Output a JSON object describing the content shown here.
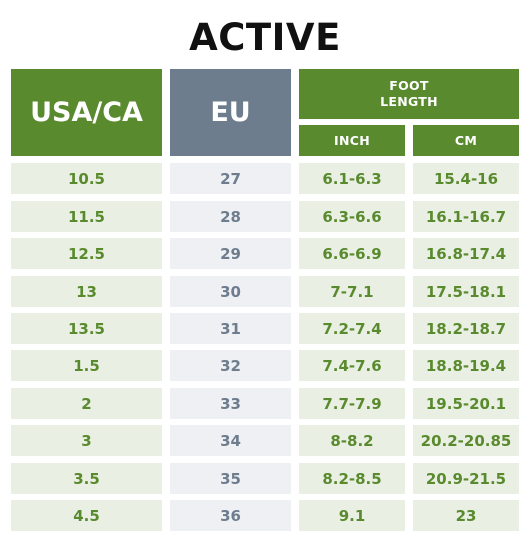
{
  "title": "ACTIVE",
  "headers": {
    "usa_ca": "USA/CA",
    "eu": "EU",
    "foot_length_line1": "FOOT",
    "foot_length_line2": "LENGTH",
    "inch": "INCH",
    "cm": "CM"
  },
  "rows": [
    {
      "usa": "10.5",
      "eu": "27",
      "inch": "6.1-6.3",
      "cm": "15.4-16"
    },
    {
      "usa": "11.5",
      "eu": "28",
      "inch": "6.3-6.6",
      "cm": "16.1-16.7"
    },
    {
      "usa": "12.5",
      "eu": "29",
      "inch": "6.6-6.9",
      "cm": "16.8-17.4"
    },
    {
      "usa": "13",
      "eu": "30",
      "inch": "7-7.1",
      "cm": "17.5-18.1"
    },
    {
      "usa": "13.5",
      "eu": "31",
      "inch": "7.2-7.4",
      "cm": "18.2-18.7"
    },
    {
      "usa": "1.5",
      "eu": "32",
      "inch": "7.4-7.6",
      "cm": "18.8-19.4"
    },
    {
      "usa": "2",
      "eu": "33",
      "inch": "7.7-7.9",
      "cm": "19.5-20.1"
    },
    {
      "usa": "3",
      "eu": "34",
      "inch": "8-8.2",
      "cm": "20.2-20.85"
    },
    {
      "usa": "3.5",
      "eu": "35",
      "inch": "8.2-8.5",
      "cm": "20.9-21.5"
    },
    {
      "usa": "4.5",
      "eu": "36",
      "inch": "9.1",
      "cm": "23"
    }
  ],
  "colors": {
    "header_green": "#5a8a2e",
    "header_gray": "#6e7d8e",
    "body_green": "#e9f0e3",
    "body_gray": "#eef0f3"
  }
}
